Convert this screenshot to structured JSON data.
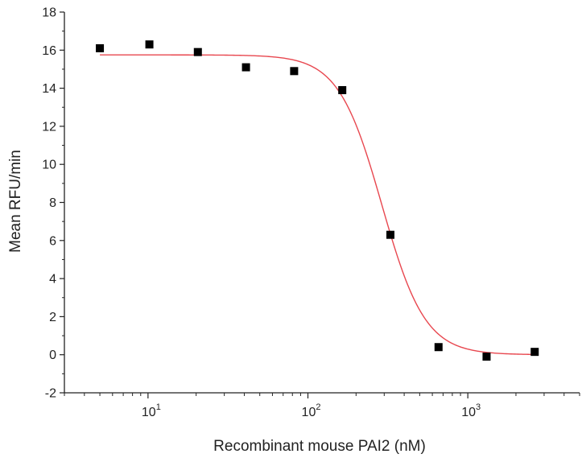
{
  "chart_data": {
    "type": "scatter",
    "xlabel": "Recombinant mouse PAI2 (nM)",
    "ylabel": "Mean RFU/min",
    "x_scale": "log",
    "xlim": [
      3,
      5000
    ],
    "ylim": [
      -2,
      18
    ],
    "y_ticks": [
      "-2",
      "0",
      "2",
      "4",
      "6",
      "8",
      "10",
      "12",
      "14",
      "16",
      "18"
    ],
    "x_ticks": [
      {
        "base": "10",
        "exp": "1",
        "value": 10
      },
      {
        "base": "10",
        "exp": "2",
        "value": 100
      },
      {
        "base": "10",
        "exp": "3",
        "value": 1000
      }
    ],
    "series": [
      {
        "kind": "points",
        "marker": "square",
        "color": "#000000",
        "points": [
          {
            "x": 5,
            "y": 16.1
          },
          {
            "x": 10.2,
            "y": 16.3
          },
          {
            "x": 20.5,
            "y": 15.9
          },
          {
            "x": 41,
            "y": 15.1
          },
          {
            "x": 82,
            "y": 14.9
          },
          {
            "x": 164,
            "y": 13.9
          },
          {
            "x": 328,
            "y": 6.3
          },
          {
            "x": 656,
            "y": 0.4
          },
          {
            "x": 1310,
            "y": -0.1
          },
          {
            "x": 2620,
            "y": 0.15
          }
        ]
      },
      {
        "kind": "fit",
        "color": "#e8474f",
        "model": "sigmoid",
        "top": 15.75,
        "bottom": 0.0,
        "ic50": 290,
        "hill": 3.2
      }
    ],
    "grid": false,
    "legend": "none"
  }
}
